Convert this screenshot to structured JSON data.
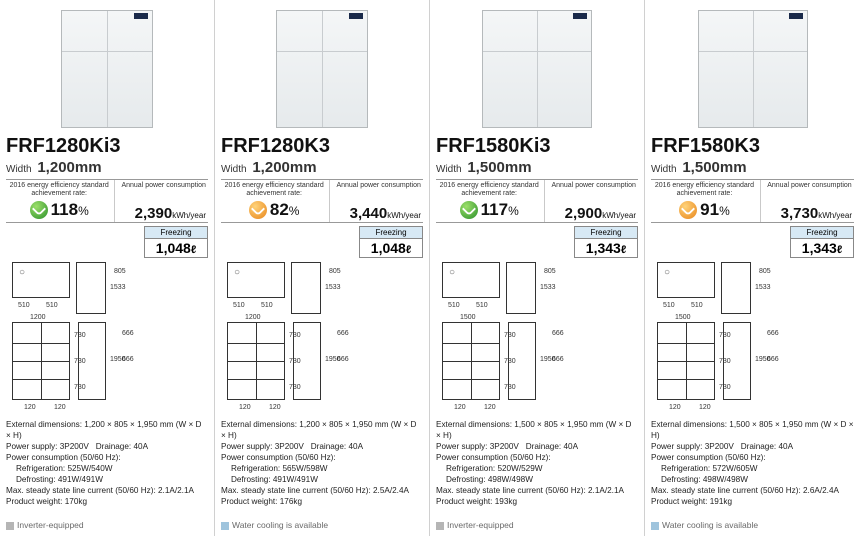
{
  "colors": {
    "green": "#2b8f2b",
    "orange": "#e8851a",
    "freeze_band": "#d7e9f5",
    "divider": "#d0d0d0"
  },
  "labels": {
    "eff_label": "2016 energy efficiency standard achievement rate:",
    "annual_label": "Annual power consumption",
    "freeze_head": "Freezing",
    "width_prefix": "Width",
    "ext_dim_label": "External dimensions:",
    "power_supply_label": "Power supply:",
    "drainage_label": "Drainage:",
    "pcons_label": "Power consumption (50/60 Hz):",
    "refrig_label": "Refrigeration:",
    "defrost_label": "Defrosting:",
    "current_label": "Max. steady state line current (50/60 Hz):",
    "weight_label": "Product weight:",
    "inverter_tag": "Inverter-equipped",
    "water_tag": "Water cooling is available",
    "annual_unit": "kWh/year",
    "liter_unit": "ℓ"
  },
  "products": [
    {
      "model": "FRF1280Ki3",
      "width": "1,200mm",
      "fridge_wide": false,
      "eff_pct": "118",
      "eff_color": "green",
      "annual": "2,390",
      "freezing": "1,048",
      "front_w": "1200",
      "specs": {
        "ext": "1,200 × 805 × 1,950 mm (W × D × H)",
        "power_supply": "3P200V",
        "drainage": "40A",
        "refrig": "525W/540W",
        "defrost": "491W/491W",
        "current": "2.1A/2.1A",
        "weight": "170kg"
      },
      "tag": "inverter"
    },
    {
      "model": "FRF1280K3",
      "width": "1,200mm",
      "fridge_wide": false,
      "eff_pct": "82",
      "eff_color": "orange",
      "annual": "3,440",
      "freezing": "1,048",
      "front_w": "1200",
      "specs": {
        "ext": "1,200 × 805 × 1,950 mm (W × D × H)",
        "power_supply": "3P200V",
        "drainage": "40A",
        "refrig": "565W/598W",
        "defrost": "491W/491W",
        "current": "2.5A/2.4A",
        "weight": "176kg"
      },
      "tag": "water"
    },
    {
      "model": "FRF1580Ki3",
      "width": "1,500mm",
      "fridge_wide": true,
      "eff_pct": "117",
      "eff_color": "green",
      "annual": "2,900",
      "freezing": "1,343",
      "front_w": "1500",
      "specs": {
        "ext": "1,500 × 805 × 1,950 mm (W × D × H)",
        "power_supply": "3P200V",
        "drainage": "40A",
        "refrig": "520W/529W",
        "defrost": "498W/498W",
        "current": "2.1A/2.1A",
        "weight": "193kg"
      },
      "tag": "inverter"
    },
    {
      "model": "FRF1580K3",
      "width": "1,500mm",
      "fridge_wide": true,
      "eff_pct": "91",
      "eff_color": "orange",
      "annual": "3,730",
      "freezing": "1,343",
      "front_w": "1500",
      "specs": {
        "ext": "1,500 × 805 × 1,950 mm (W × D × H)",
        "power_supply": "3P200V",
        "drainage": "40A",
        "refrig": "572W/605W",
        "defrost": "498W/498W",
        "current": "2.6A/2.4A",
        "weight": "191kg"
      },
      "tag": "water"
    }
  ]
}
